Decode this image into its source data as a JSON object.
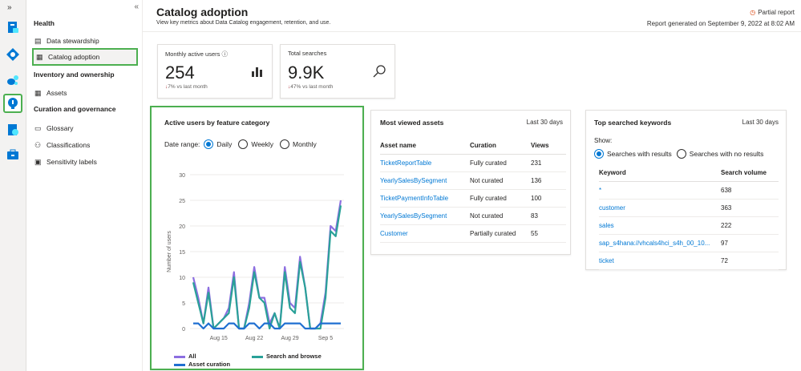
{
  "page": {
    "title": "Catalog adoption",
    "subtitle": "View key metrics about Data Catalog engagement, retention, and use.",
    "partial_report": "Partial report",
    "generated": "Report generated on September 9, 2022 at 8:02 AM"
  },
  "rail": {
    "expand_glyph": "»",
    "icons": [
      "data-catalog-icon",
      "data-map-icon",
      "data-estate-icon",
      "insights-icon",
      "data-policy-icon",
      "management-icon"
    ]
  },
  "sidebar": {
    "collapse_glyph": "«",
    "sections": [
      {
        "header": "Health",
        "items": [
          {
            "label": "Data stewardship",
            "icon": "▤"
          },
          {
            "label": "Catalog adoption",
            "icon": "▦"
          }
        ]
      },
      {
        "header": "Inventory and ownership",
        "items": [
          {
            "label": "Assets",
            "icon": "▦"
          }
        ]
      },
      {
        "header": "Curation and governance",
        "items": [
          {
            "label": "Glossary",
            "icon": "▭"
          },
          {
            "label": "Classifications",
            "icon": "⚇"
          },
          {
            "label": "Sensitivity labels",
            "icon": "▣"
          }
        ]
      }
    ]
  },
  "kpis": [
    {
      "label": "Monthly active users",
      "info": "ⓘ",
      "value": "254",
      "trend_arrow": "↓",
      "trend_pct": "7%",
      "trend_text": "vs last month",
      "icon": "bar-chart-icon"
    },
    {
      "label": "Total searches",
      "value": "9.9K",
      "trend_arrow": "↓",
      "trend_pct": "47%",
      "trend_text": "vs last month",
      "icon": "search-icon"
    }
  ],
  "active_users": {
    "title": "Active users by feature category",
    "date_range_label": "Date range:",
    "options": [
      "Daily",
      "Weekly",
      "Monthly"
    ],
    "selected": "Daily"
  },
  "chart_data": {
    "type": "line",
    "title": "Active users by feature category",
    "ylabel": "Number of users",
    "xlabel": "",
    "ylim": [
      0,
      30
    ],
    "yticks": [
      0,
      5,
      10,
      15,
      20,
      25,
      30
    ],
    "x_tick_labels": [
      {
        "label": "Aug 15",
        "index": 5
      },
      {
        "label": "Aug 22",
        "index": 12
      },
      {
        "label": "Aug 29",
        "index": 19
      },
      {
        "label": "Sep 5",
        "index": 26
      }
    ],
    "x_count": 30,
    "grid": true,
    "legend": "bottom",
    "series": [
      {
        "name": "All",
        "color": "#8c6ee0",
        "values": [
          10,
          6,
          1,
          8,
          0,
          1,
          2,
          4,
          11,
          0,
          0,
          5,
          12,
          6,
          6,
          1,
          3,
          0,
          12,
          5,
          4,
          14,
          8,
          0,
          0,
          1,
          7,
          20,
          19,
          25
        ]
      },
      {
        "name": "Search and browse",
        "color": "#2aa198",
        "values": [
          9,
          5,
          1,
          7,
          0,
          1,
          2,
          3,
          10,
          0,
          0,
          4,
          11,
          6,
          5,
          0,
          3,
          0,
          11,
          4,
          3,
          13,
          8,
          0,
          0,
          0,
          6,
          19,
          18,
          24
        ]
      },
      {
        "name": "Asset curation",
        "color": "#1f6fd1",
        "values": [
          1,
          1,
          0,
          1,
          0,
          0,
          0,
          1,
          1,
          0,
          0,
          1,
          1,
          0,
          1,
          1,
          0,
          0,
          1,
          1,
          1,
          1,
          0,
          0,
          0,
          1,
          1,
          1,
          1,
          1
        ]
      }
    ]
  },
  "most_viewed": {
    "title": "Most viewed assets",
    "period": "Last 30 days",
    "columns": [
      "Asset name",
      "Curation",
      "Views"
    ],
    "rows": [
      [
        "TicketReportTable",
        "Fully curated",
        "231"
      ],
      [
        "YearlySalesBySegment",
        "Not curated",
        "136"
      ],
      [
        "TicketPaymentInfoTable",
        "Fully curated",
        "100"
      ],
      [
        "YearlySalesBySegment",
        "Not curated",
        "83"
      ],
      [
        "Customer",
        "Partially curated",
        "55"
      ]
    ]
  },
  "top_keywords": {
    "title": "Top searched keywords",
    "period": "Last 30 days",
    "show_label": "Show:",
    "options": [
      "Searches with results",
      "Searches with no results"
    ],
    "selected": "Searches with results",
    "columns": [
      "Keyword",
      "Search volume"
    ],
    "rows": [
      [
        "*",
        "638"
      ],
      [
        "customer",
        "363"
      ],
      [
        "sales",
        "222"
      ],
      [
        "sap_s4hana://vhcals4hci_s4h_00_10...",
        "97"
      ],
      [
        "ticket",
        "72"
      ]
    ]
  }
}
